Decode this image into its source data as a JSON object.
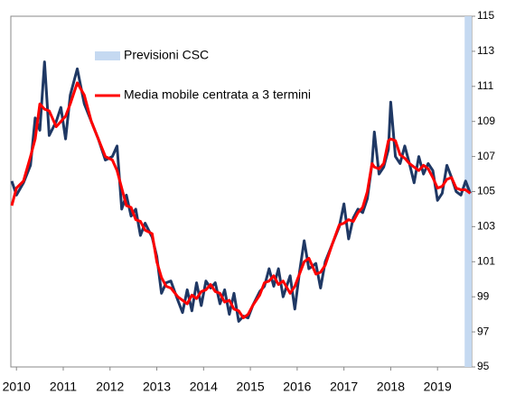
{
  "chart_data": {
    "type": "line",
    "x": [
      2009.9,
      2010.0,
      2010.15,
      2010.3,
      2010.4,
      2010.5,
      2010.6,
      2010.7,
      2010.85,
      2010.95,
      2011.05,
      2011.15,
      2011.3,
      2011.45,
      2011.6,
      2011.75,
      2011.9,
      2012.05,
      2012.15,
      2012.25,
      2012.35,
      2012.45,
      2012.55,
      2012.65,
      2012.75,
      2012.9,
      2013.0,
      2013.1,
      2013.2,
      2013.3,
      2013.45,
      2013.55,
      2013.65,
      2013.75,
      2013.85,
      2013.95,
      2014.05,
      2014.15,
      2014.25,
      2014.35,
      2014.45,
      2014.55,
      2014.65,
      2014.75,
      2014.85,
      2014.95,
      2015.05,
      2015.2,
      2015.3,
      2015.4,
      2015.5,
      2015.6,
      2015.7,
      2015.85,
      2015.95,
      2016.05,
      2016.15,
      2016.25,
      2016.4,
      2016.5,
      2016.6,
      2016.75,
      2016.9,
      2017.0,
      2017.1,
      2017.2,
      2017.3,
      2017.4,
      2017.5,
      2017.6,
      2017.65,
      2017.75,
      2017.85,
      2017.95,
      2018.0,
      2018.1,
      2018.2,
      2018.3,
      2018.4,
      2018.5,
      2018.6,
      2018.7,
      2018.8,
      2018.9,
      2019.0,
      2019.1,
      2019.2,
      2019.3,
      2019.4,
      2019.5,
      2019.6,
      2019.7
    ],
    "series": [
      {
        "color": "#1f3864",
        "width": 3,
        "values": [
          105.6,
          104.8,
          105.5,
          106.5,
          109.2,
          108.5,
          112.4,
          108.2,
          109.0,
          109.8,
          108.0,
          110.5,
          112.0,
          110.0,
          109.0,
          108.0,
          106.8,
          107.0,
          107.6,
          104.0,
          104.8,
          103.6,
          104.0,
          102.5,
          103.2,
          102.4,
          101.3,
          99.2,
          99.8,
          99.9,
          98.8,
          98.1,
          99.4,
          98.2,
          99.8,
          98.5,
          99.9,
          99.5,
          99.8,
          98.6,
          99.4,
          98.0,
          99.2,
          97.6,
          97.9,
          97.8,
          98.5,
          99.3,
          99.6,
          100.6,
          99.6,
          100.6,
          99.0,
          100.2,
          98.3,
          100.4,
          102.2,
          100.6,
          100.9,
          99.5,
          101.0,
          102.0,
          103.0,
          104.3,
          102.3,
          103.5,
          104.0,
          103.8,
          104.6,
          106.6,
          108.4,
          106.0,
          106.4,
          107.4,
          110.1,
          107.0,
          106.6,
          107.6,
          106.6,
          105.5,
          107.0,
          106.0,
          106.6,
          106.2,
          104.5,
          104.9,
          106.5,
          105.8,
          105.0,
          104.8,
          105.6,
          104.9
        ]
      },
      {
        "name": "Media mobile centrata a 3 termini",
        "color": "#ff0000",
        "width": 3,
        "values": [
          104.2,
          105.2,
          105.6,
          107.0,
          108.0,
          110.0,
          109.7,
          109.6,
          108.7,
          109.0,
          109.3,
          110.0,
          111.2,
          110.5,
          109.0,
          108.0,
          107.0,
          106.8,
          106.2,
          105.2,
          104.2,
          104.1,
          103.4,
          103.3,
          102.8,
          102.6,
          101.0,
          100.1,
          99.6,
          99.5,
          99.0,
          98.8,
          98.6,
          99.1,
          98.9,
          99.3,
          99.4,
          99.7,
          99.3,
          99.2,
          98.7,
          98.8,
          98.3,
          98.2,
          97.8,
          98.0,
          98.5,
          99.1,
          99.8,
          99.9,
          100.2,
          99.7,
          99.9,
          99.2,
          99.6,
          100.3,
          101.0,
          101.2,
          100.3,
          100.4,
          100.8,
          102.0,
          103.1,
          103.2,
          103.4,
          103.3,
          103.8,
          104.1,
          105.0,
          106.6,
          106.4,
          106.3,
          106.6,
          107.9,
          108.0,
          107.9,
          107.1,
          106.9,
          106.6,
          106.4,
          106.2,
          106.5,
          106.3,
          105.8,
          105.2,
          105.3,
          105.7,
          105.8,
          105.2,
          105.1,
          105.1,
          104.9
        ]
      }
    ],
    "bands": [
      {
        "name": "Previsioni CSC",
        "color": "#c5d9f1",
        "xrange": [
          2019.58,
          2019.73
        ]
      }
    ],
    "xlim": [
      2009.88,
      2019.73
    ],
    "xticks": [
      2010,
      2011,
      2012,
      2013,
      2014,
      2015,
      2016,
      2017,
      2018,
      2019
    ],
    "ylim": [
      95,
      115
    ],
    "yticks": [
      95,
      97,
      99,
      101,
      103,
      105,
      107,
      109,
      111,
      113,
      115
    ],
    "y_axis_side": "right"
  }
}
